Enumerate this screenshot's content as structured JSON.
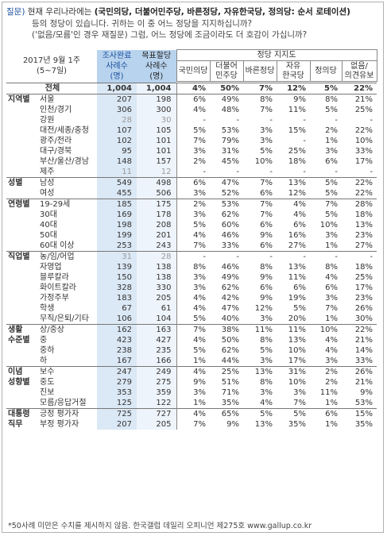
{
  "question": {
    "label": "질문)",
    "line1_prefix": "현재 우리나라에는",
    "line1_bold": "(국민의당, 더불어민주당, 바른정당, 자유한국당, 정의당: 순서 로테이션)",
    "line2": "등의 정당이 있습니다. 귀하는 이 중 어느 정당을 지지하십니까?",
    "line3": "('없음/모름'인 경우 재질문) 그럼, 어느 정당에 조금이라도 더 호감이 가십니까?"
  },
  "table": {
    "title_line1": "2017년 9월 1주",
    "title_line2": "(5~7일)",
    "col_survey": [
      "조사완료",
      "사례수",
      "(명)"
    ],
    "col_target": [
      "목표할당",
      "사례수",
      "(명)"
    ],
    "party_group_header": "정당 지지도",
    "parties": [
      [
        "국민의당",
        ""
      ],
      [
        "더불어",
        "민주당"
      ],
      [
        "바른정당",
        ""
      ],
      [
        "자유",
        "한국당"
      ],
      [
        "정의당",
        ""
      ],
      [
        "없음/",
        "의견유보"
      ]
    ],
    "rows": [
      {
        "cat": "전체",
        "sub": "",
        "n": "1,004",
        "t": "1,004",
        "v": [
          "4%",
          "50%",
          "7%",
          "12%",
          "5%",
          "22%"
        ],
        "type": "total"
      },
      {
        "cat": "지역별",
        "sub": "서울",
        "n": "207",
        "t": "198",
        "v": [
          "6%",
          "49%",
          "8%",
          "9%",
          "8%",
          "21%"
        ],
        "type": "top"
      },
      {
        "cat": "",
        "sub": "인천/경기",
        "n": "306",
        "t": "300",
        "v": [
          "4%",
          "48%",
          "7%",
          "11%",
          "5%",
          "25%"
        ]
      },
      {
        "cat": "",
        "sub": "강원",
        "n": "28",
        "t": "30",
        "v": [
          "-",
          "-",
          "-",
          "-",
          "-",
          "-"
        ],
        "muted": true
      },
      {
        "cat": "",
        "sub": "대전/세종/충청",
        "n": "107",
        "t": "105",
        "v": [
          "5%",
          "53%",
          "3%",
          "15%",
          "2%",
          "22%"
        ]
      },
      {
        "cat": "",
        "sub": "광주/전라",
        "n": "102",
        "t": "101",
        "v": [
          "7%",
          "79%",
          "3%",
          "-",
          "1%",
          "10%"
        ]
      },
      {
        "cat": "",
        "sub": "대구/경북",
        "n": "95",
        "t": "101",
        "v": [
          "3%",
          "31%",
          "5%",
          "25%",
          "3%",
          "33%"
        ]
      },
      {
        "cat": "",
        "sub": "부산/울산/경남",
        "n": "148",
        "t": "157",
        "v": [
          "2%",
          "45%",
          "10%",
          "18%",
          "6%",
          "17%"
        ]
      },
      {
        "cat": "",
        "sub": "제주",
        "n": "11",
        "t": "12",
        "v": [
          "-",
          "-",
          "-",
          "-",
          "-",
          "-"
        ],
        "muted": true
      },
      {
        "cat": "성별",
        "sub": "남성",
        "n": "549",
        "t": "498",
        "v": [
          "6%",
          "47%",
          "7%",
          "13%",
          "5%",
          "22%"
        ],
        "type": "top"
      },
      {
        "cat": "",
        "sub": "여성",
        "n": "455",
        "t": "506",
        "v": [
          "3%",
          "52%",
          "6%",
          "12%",
          "5%",
          "22%"
        ]
      },
      {
        "cat": "연령별",
        "sub": "19-29세",
        "n": "185",
        "t": "175",
        "v": [
          "2%",
          "53%",
          "7%",
          "4%",
          "7%",
          "28%"
        ],
        "type": "top"
      },
      {
        "cat": "",
        "sub": "30대",
        "n": "169",
        "t": "178",
        "v": [
          "3%",
          "62%",
          "7%",
          "4%",
          "5%",
          "18%"
        ]
      },
      {
        "cat": "",
        "sub": "40대",
        "n": "198",
        "t": "208",
        "v": [
          "5%",
          "60%",
          "6%",
          "6%",
          "10%",
          "13%"
        ]
      },
      {
        "cat": "",
        "sub": "50대",
        "n": "199",
        "t": "201",
        "v": [
          "4%",
          "46%",
          "9%",
          "16%",
          "3%",
          "23%"
        ]
      },
      {
        "cat": "",
        "sub": "60대 이상",
        "n": "253",
        "t": "243",
        "v": [
          "7%",
          "33%",
          "6%",
          "27%",
          "1%",
          "27%"
        ]
      },
      {
        "cat": "직업별",
        "sub": "농/임/어업",
        "n": "31",
        "t": "28",
        "v": [
          "-",
          "-",
          "-",
          "-",
          "-",
          "-"
        ],
        "type": "top",
        "muted": true
      },
      {
        "cat": "",
        "sub": "자영업",
        "n": "139",
        "t": "138",
        "v": [
          "8%",
          "46%",
          "8%",
          "13%",
          "8%",
          "18%"
        ]
      },
      {
        "cat": "",
        "sub": "블루칼라",
        "n": "150",
        "t": "138",
        "v": [
          "3%",
          "49%",
          "9%",
          "11%",
          "4%",
          "25%"
        ]
      },
      {
        "cat": "",
        "sub": "화이트칼라",
        "n": "328",
        "t": "330",
        "v": [
          "3%",
          "62%",
          "6%",
          "6%",
          "6%",
          "17%"
        ]
      },
      {
        "cat": "",
        "sub": "가정주부",
        "n": "183",
        "t": "205",
        "v": [
          "4%",
          "42%",
          "9%",
          "19%",
          "3%",
          "23%"
        ]
      },
      {
        "cat": "",
        "sub": "학생",
        "n": "67",
        "t": "61",
        "v": [
          "4%",
          "47%",
          "12%",
          "5%",
          "7%",
          "26%"
        ]
      },
      {
        "cat": "",
        "sub": "무직/은퇴/기타",
        "n": "106",
        "t": "104",
        "v": [
          "5%",
          "40%",
          "3%",
          "20%",
          "1%",
          "30%"
        ]
      },
      {
        "cat": "생활",
        "sub": "상/중상",
        "n": "162",
        "t": "163",
        "v": [
          "7%",
          "38%",
          "11%",
          "11%",
          "10%",
          "22%"
        ],
        "type": "top"
      },
      {
        "cat": "수준별",
        "sub": "중",
        "n": "423",
        "t": "427",
        "v": [
          "4%",
          "50%",
          "8%",
          "13%",
          "4%",
          "21%"
        ]
      },
      {
        "cat": "",
        "sub": "중하",
        "n": "238",
        "t": "235",
        "v": [
          "5%",
          "62%",
          "5%",
          "10%",
          "4%",
          "14%"
        ]
      },
      {
        "cat": "",
        "sub": "하",
        "n": "167",
        "t": "166",
        "v": [
          "1%",
          "44%",
          "3%",
          "17%",
          "3%",
          "33%"
        ]
      },
      {
        "cat": "이념",
        "sub": "보수",
        "n": "247",
        "t": "249",
        "v": [
          "4%",
          "25%",
          "13%",
          "31%",
          "2%",
          "26%"
        ],
        "type": "top"
      },
      {
        "cat": "성향별",
        "sub": "중도",
        "n": "279",
        "t": "275",
        "v": [
          "9%",
          "51%",
          "8%",
          "10%",
          "2%",
          "21%"
        ]
      },
      {
        "cat": "",
        "sub": "진보",
        "n": "353",
        "t": "359",
        "v": [
          "3%",
          "71%",
          "3%",
          "3%",
          "11%",
          "9%"
        ]
      },
      {
        "cat": "",
        "sub": "모름/응답거절",
        "n": "125",
        "t": "122",
        "v": [
          "1%",
          "35%",
          "4%",
          "7%",
          "1%",
          "53%"
        ]
      },
      {
        "cat": "대통령",
        "sub": "긍정 평가자",
        "n": "725",
        "t": "727",
        "v": [
          "4%",
          "65%",
          "5%",
          "5%",
          "6%",
          "15%"
        ],
        "type": "top"
      },
      {
        "cat": "직무",
        "sub": "부정 평가자",
        "n": "207",
        "t": "205",
        "v": [
          "7%",
          "9%",
          "13%",
          "35%",
          "1%",
          "35%"
        ]
      }
    ]
  },
  "footnote": "*50사례 미만은 수치를 제시하지 않음. 한국갤럽 데일리 오피니언 제275호 www.gallup.co.kr"
}
